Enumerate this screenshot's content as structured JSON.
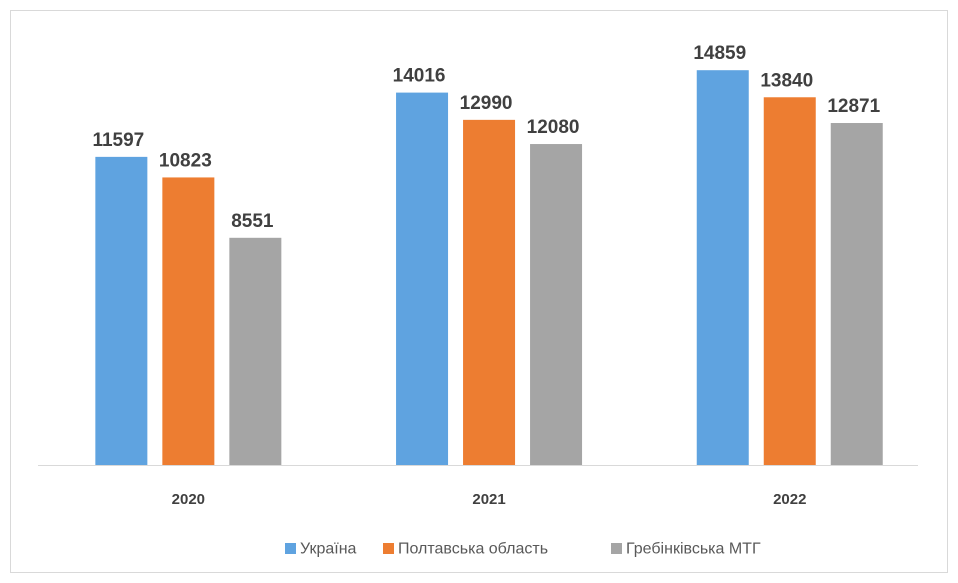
{
  "chart_data": {
    "type": "bar",
    "categories": [
      "2020",
      "2021",
      "2022"
    ],
    "series": [
      {
        "name": "Україна",
        "color": "#5fa3e0",
        "values": [
          11597,
          14016,
          14859
        ]
      },
      {
        "name": "Полтавська область",
        "color": "#ed7d31",
        "values": [
          10823,
          12990,
          13840
        ]
      },
      {
        "name": "Гребінківська МТГ",
        "color": "#a5a5a5",
        "values": [
          8551,
          12080,
          12871
        ]
      }
    ]
  }
}
